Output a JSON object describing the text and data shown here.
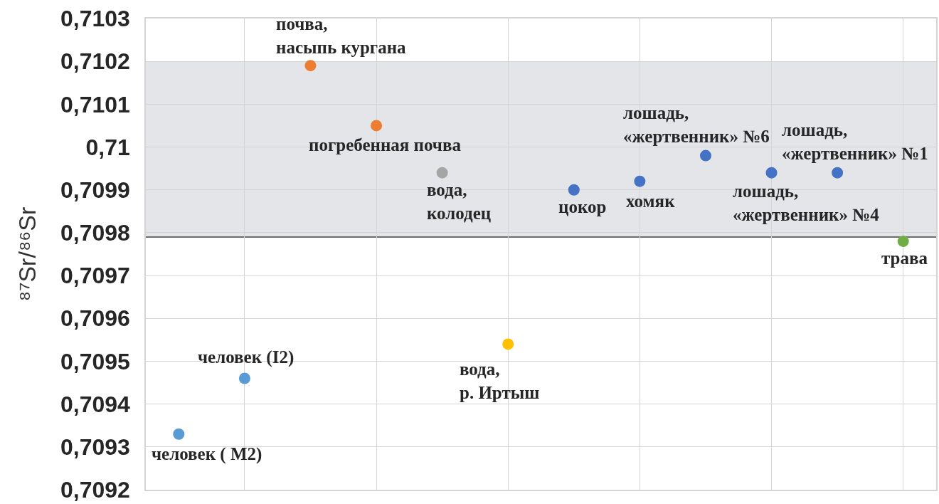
{
  "chart_data": {
    "type": "scatter",
    "ylabel": "⁸⁷Sr/⁸⁶Sr",
    "categories": [
      null,
      null,
      null,
      null,
      null,
      null,
      null,
      null,
      null,
      null,
      null,
      null
    ],
    "values": [
      0.70933,
      0.70946,
      0.71019,
      0.71005,
      0.70994,
      0.70954,
      0.7099,
      0.70992,
      0.70998,
      0.70994,
      0.70994,
      0.70978
    ],
    "colors": [
      "#5b9bd5",
      "#5b9bd5",
      "#ed7d31",
      "#ed7d31",
      "#a5a5a5",
      "#ffc000",
      "#4472c4",
      "#4472c4",
      "#4472c4",
      "#4472c4",
      "#4472c4",
      "#70ad47"
    ],
    "annotations": [
      "человек ( M2)",
      "человек (I2)",
      "почва,\nнасыпь кургана",
      "погребенная почва",
      "вода,\nколодец",
      "вода,\nр. Иртыш",
      "цокор",
      "хомяк",
      "лошадь,\n«жертвенник» №6",
      "лошадь,\n«жертвенник» №4",
      "лошадь,\n«жертвенник» №1",
      "трава"
    ],
    "ylim": [
      0.7092,
      0.7103
    ],
    "yticks": [
      {
        "value": 0.7092,
        "label": "0,7092"
      },
      {
        "value": 0.7093,
        "label": "0,7093"
      },
      {
        "value": 0.7094,
        "label": "0,7094"
      },
      {
        "value": 0.7095,
        "label": "0,7095"
      },
      {
        "value": 0.7096,
        "label": "0,7096"
      },
      {
        "value": 0.7097,
        "label": "0,7097"
      },
      {
        "value": 0.7098,
        "label": "0,7098"
      },
      {
        "value": 0.7099,
        "label": "0,7099"
      },
      {
        "value": 0.71,
        "label": "0,71"
      },
      {
        "value": 0.7101,
        "label": "0,7101"
      },
      {
        "value": 0.7102,
        "label": "0,7102"
      },
      {
        "value": 0.7103,
        "label": "0,7103"
      }
    ],
    "bands": [
      {
        "axis": "y",
        "from": 0.70979,
        "to": 0.7102,
        "color": "#e3e5e9"
      }
    ],
    "ref_lines": [
      {
        "axis": "y",
        "value": 0.70979,
        "color": "#404040"
      }
    ],
    "grid": true,
    "marker": "circle",
    "tick_labels": "y"
  }
}
